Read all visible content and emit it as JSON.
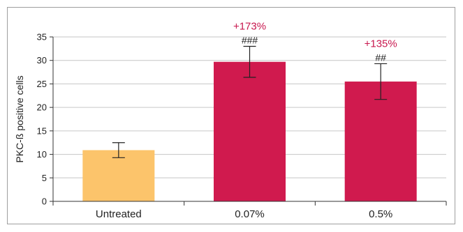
{
  "chart_data": {
    "type": "bar",
    "title": "",
    "xlabel": "",
    "ylabel": "PKC-ß positive cells",
    "ylim": [
      0,
      35
    ],
    "yticks": [
      0,
      5,
      10,
      15,
      20,
      25,
      30,
      35
    ],
    "grid": true,
    "legend": "none",
    "categories": [
      "Untreated",
      "0.07%",
      "0.5%"
    ],
    "values": [
      10.9,
      29.7,
      25.5
    ],
    "errors": [
      1.6,
      3.3,
      3.8
    ],
    "bar_colors": [
      "#fcc46b",
      "#d01a4e",
      "#d01a4e"
    ],
    "annotations": [
      {
        "category": "0.07%",
        "significance": "###",
        "percent_change": "+173%"
      },
      {
        "category": "0.5%",
        "significance": "##",
        "percent_change": "+135%"
      }
    ],
    "colors": {
      "grid": "#c6c6c6",
      "axis": "#333333",
      "error_bar": "#222222",
      "percent_text": "#c8174e"
    }
  }
}
